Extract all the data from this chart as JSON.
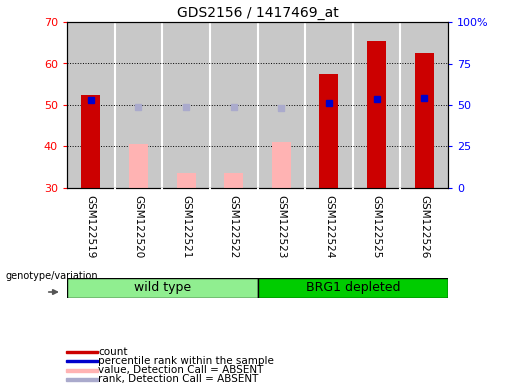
{
  "title": "GDS2156 / 1417469_at",
  "samples": [
    "GSM122519",
    "GSM122520",
    "GSM122521",
    "GSM122522",
    "GSM122523",
    "GSM122524",
    "GSM122525",
    "GSM122526"
  ],
  "count_values": [
    52.5,
    null,
    null,
    null,
    null,
    57.5,
    65.5,
    62.5
  ],
  "rank_values": [
    53.0,
    null,
    null,
    null,
    null,
    51.5,
    53.5,
    54.0
  ],
  "absent_value": [
    null,
    40.5,
    33.5,
    33.5,
    41.0,
    null,
    null,
    null
  ],
  "absent_rank": [
    null,
    48.5,
    49.0,
    49.0,
    48.0,
    null,
    null,
    null
  ],
  "ylim_left": [
    30,
    70
  ],
  "ylim_right": [
    0,
    100
  ],
  "yticks_left": [
    30,
    40,
    50,
    60,
    70
  ],
  "yticks_right": [
    0,
    25,
    50,
    75,
    100
  ],
  "ytick_labels_right": [
    "0",
    "25",
    "50",
    "75",
    "100%"
  ],
  "bar_color_red": "#cc0000",
  "bar_color_pink": "#ffb3b3",
  "dot_color_blue": "#0000cc",
  "dot_color_lightblue": "#aaaacc",
  "background_color": "#c8c8c8",
  "wt_color": "#90EE90",
  "brg_color": "#00cc00",
  "legend_items": [
    "count",
    "percentile rank within the sample",
    "value, Detection Call = ABSENT",
    "rank, Detection Call = ABSENT"
  ],
  "legend_colors": [
    "#cc0000",
    "#0000cc",
    "#ffb3b3",
    "#aaaacc"
  ],
  "bar_width": 0.4
}
